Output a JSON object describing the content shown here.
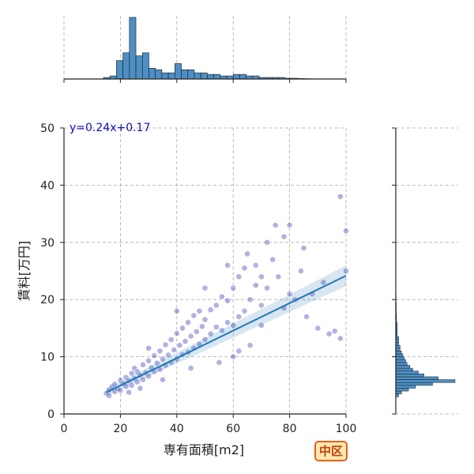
{
  "badge": {
    "label": "中区"
  },
  "chart_data": {
    "type": "scatter",
    "xlabel": "専有面積[m2]",
    "ylabel": "賃料[万円]",
    "xlim": [
      0,
      100
    ],
    "ylim": [
      0,
      50
    ],
    "x_ticks": [
      0,
      20,
      40,
      60,
      80,
      100
    ],
    "y_ticks": [
      0,
      10,
      20,
      30,
      40,
      50
    ],
    "grid": true,
    "regression": {
      "equation_label": "y=0.24x+0.17",
      "slope": 0.24,
      "intercept": 0.17,
      "x_range": [
        15,
        100
      ]
    },
    "points_color": "#2222aa",
    "line_color": "#1f77b4",
    "hist_color": "#4d8fc4",
    "points": [
      [
        15,
        3.6
      ],
      [
        16,
        4.2
      ],
      [
        16,
        3.2
      ],
      [
        17,
        4.8
      ],
      [
        18,
        3.9
      ],
      [
        18,
        5.2
      ],
      [
        19,
        4.4
      ],
      [
        20,
        5.9
      ],
      [
        20,
        4.1
      ],
      [
        21,
        5.3
      ],
      [
        22,
        6.4
      ],
      [
        22,
        4.8
      ],
      [
        23,
        5.8
      ],
      [
        24,
        7.1
      ],
      [
        24,
        5.0
      ],
      [
        25,
        6.2
      ],
      [
        25,
        8.0
      ],
      [
        26,
        5.6
      ],
      [
        26,
        7.4
      ],
      [
        27,
        6.8
      ],
      [
        28,
        8.6
      ],
      [
        28,
        6.0
      ],
      [
        29,
        7.2
      ],
      [
        30,
        9.3
      ],
      [
        30,
        6.6
      ],
      [
        31,
        8.1
      ],
      [
        32,
        10.2
      ],
      [
        32,
        7.4
      ],
      [
        33,
        8.9
      ],
      [
        34,
        11.0
      ],
      [
        34,
        7.8
      ],
      [
        35,
        9.6
      ],
      [
        36,
        12.1
      ],
      [
        36,
        8.5
      ],
      [
        37,
        10.3
      ],
      [
        38,
        13.0
      ],
      [
        38,
        9.0
      ],
      [
        39,
        11.2
      ],
      [
        40,
        14.1
      ],
      [
        40,
        9.6
      ],
      [
        41,
        12.0
      ],
      [
        42,
        15.0
      ],
      [
        42,
        10.4
      ],
      [
        43,
        12.7
      ],
      [
        44,
        16.0
      ],
      [
        44,
        10.8
      ],
      [
        45,
        13.6
      ],
      [
        46,
        17.2
      ],
      [
        46,
        11.5
      ],
      [
        47,
        14.4
      ],
      [
        48,
        18.0
      ],
      [
        48,
        12.2
      ],
      [
        49,
        15.3
      ],
      [
        50,
        16.5
      ],
      [
        50,
        13.0
      ],
      [
        52,
        18.2
      ],
      [
        52,
        14.0
      ],
      [
        54,
        19.0
      ],
      [
        54,
        15.2
      ],
      [
        56,
        20.5
      ],
      [
        56,
        14.6
      ],
      [
        58,
        19.8
      ],
      [
        58,
        16.0
      ],
      [
        60,
        22.0
      ],
      [
        60,
        15.5
      ],
      [
        62,
        24.0
      ],
      [
        62,
        17.0
      ],
      [
        64,
        25.5
      ],
      [
        64,
        18.0
      ],
      [
        65,
        28.0
      ],
      [
        66,
        20.0
      ],
      [
        68,
        22.5
      ],
      [
        68,
        26.0
      ],
      [
        70,
        24.0
      ],
      [
        70,
        19.0
      ],
      [
        72,
        30.0
      ],
      [
        72,
        22.0
      ],
      [
        74,
        27.0
      ],
      [
        75,
        33.0
      ],
      [
        76,
        24.0
      ],
      [
        78,
        31.0
      ],
      [
        78,
        18.5
      ],
      [
        80,
        33.0
      ],
      [
        80,
        21.0
      ],
      [
        82,
        20.0
      ],
      [
        84,
        25.0
      ],
      [
        86,
        17.0
      ],
      [
        88,
        21.0
      ],
      [
        90,
        15.0
      ],
      [
        92,
        23.0
      ],
      [
        94,
        14.0
      ],
      [
        96,
        14.5
      ],
      [
        98,
        38.0
      ],
      [
        98,
        13.2
      ],
      [
        100,
        32.0
      ],
      [
        100,
        25.0
      ],
      [
        85,
        29.0
      ],
      [
        60,
        10.0
      ],
      [
        55,
        9.0
      ],
      [
        45,
        8.0
      ],
      [
        35,
        6.0
      ],
      [
        27,
        4.5
      ],
      [
        23,
        3.8
      ],
      [
        30,
        11.5
      ],
      [
        40,
        18.0
      ],
      [
        50,
        22.0
      ],
      [
        66,
        12.0
      ],
      [
        70,
        15.5
      ],
      [
        58,
        26.0
      ],
      [
        62,
        11.0
      ]
    ],
    "x_hist": {
      "bin_start": 14,
      "bin_width": 2.3,
      "counts": [
        1,
        2,
        12,
        17,
        40,
        15,
        17,
        7,
        6,
        4,
        4,
        10,
        6,
        6,
        4,
        4,
        3,
        3,
        2,
        2,
        3,
        3,
        2,
        2,
        1,
        1,
        1,
        1,
        0.5,
        0.5,
        0.3,
        0.2,
        0.1,
        0.1,
        0.1,
        0.05,
        0.05,
        0.05,
        0.05
      ]
    },
    "y_hist": {
      "bin_start": 3,
      "bin_width": 0.5,
      "counts": [
        2,
        4,
        9,
        14,
        26,
        42,
        30,
        20,
        16,
        12,
        10,
        8,
        7,
        6,
        5,
        4,
        3,
        3,
        2,
        2,
        2,
        1,
        1,
        1,
        1,
        1,
        0.5,
        0.5,
        0.5,
        0.3,
        0.3,
        0.3,
        0.3,
        0.2,
        0.2,
        0.2,
        0.1,
        0.1
      ]
    }
  }
}
